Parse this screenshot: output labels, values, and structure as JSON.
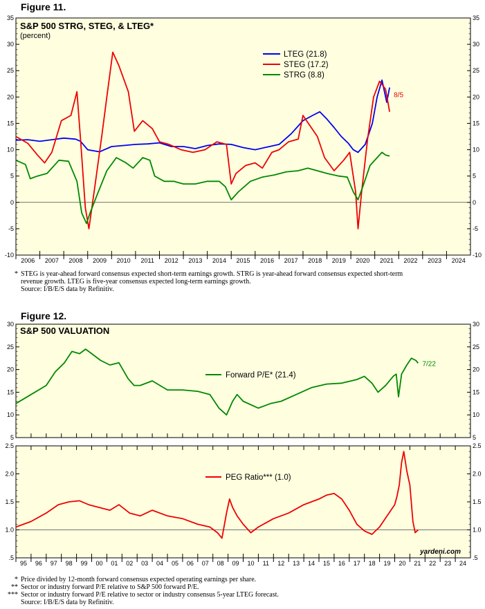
{
  "figure11": {
    "label": "Figure 11.",
    "footnote_mark": "*",
    "footnote_lines": [
      "STEG is year-ahead forward consensus expected short-term earnings growth. STRG is year-ahead forward consensus expected short-term",
      "revenue growth. LTEG is five-year consensus expected long-term earnings growth.",
      "Source: I/B/E/S data by Refinitiv."
    ]
  },
  "figure12": {
    "label": "Figure 12.",
    "footnotes": [
      {
        "mark": "*",
        "text": "Price divided by 12-month forward consensus expected operating earnings per share."
      },
      {
        "mark": "**",
        "text": "Sector or industry forward P/E relative to S&P 500 forward P/E."
      },
      {
        "mark": "***",
        "text": "Sector or industry forward P/E relative to sector or industry consensus 5-year LTEG forecast."
      },
      {
        "mark": "",
        "text": "Source: I/B/E/S data by Refinitiv."
      }
    ],
    "watermark": "yardeni.com"
  },
  "colors": {
    "background": "#ffffe0",
    "blue": "#0000ee",
    "red": "#ee0000",
    "green": "#008800"
  },
  "chart_data": [
    {
      "type": "line",
      "title": "S&P 500 STRG, STEG, & LTEG*",
      "subtitle": "(percent)",
      "ylim": [
        -10,
        35
      ],
      "yticks": [
        -10,
        -5,
        0,
        5,
        10,
        15,
        20,
        25,
        30,
        35
      ],
      "xlim": [
        2006.0,
        2025.0
      ],
      "xtick_labels": [
        "2006",
        "2007",
        "2008",
        "2009",
        "2010",
        "2011",
        "2012",
        "2013",
        "2014",
        "2015",
        "2016",
        "2017",
        "2018",
        "2019",
        "2020",
        "2021",
        "2022",
        "2023",
        "2024"
      ],
      "reference_line": 0,
      "latest_label": "8/5",
      "legend_position": "top-center",
      "series": [
        {
          "name": "LTEG (21.8)",
          "color": "#0000ee",
          "x": [
            2006.0,
            2006.5,
            2007.0,
            2007.5,
            2008.0,
            2008.5,
            2008.7,
            2009.0,
            2009.5,
            2010.0,
            2010.5,
            2011.0,
            2011.5,
            2012.0,
            2012.5,
            2013.0,
            2013.5,
            2014.0,
            2014.5,
            2015.0,
            2015.5,
            2016.0,
            2016.5,
            2017.0,
            2017.5,
            2018.0,
            2018.4,
            2018.7,
            2019.0,
            2019.3,
            2019.6,
            2019.9,
            2020.1,
            2020.3,
            2020.6,
            2020.9,
            2021.1,
            2021.3,
            2021.5,
            2021.62
          ],
          "y": [
            11.8,
            11.9,
            11.6,
            11.9,
            12.2,
            12.0,
            11.6,
            10.0,
            9.6,
            10.6,
            10.8,
            11.0,
            11.1,
            11.3,
            10.6,
            10.6,
            10.2,
            10.8,
            11.1,
            11.0,
            10.4,
            10.0,
            10.5,
            11.0,
            13.0,
            15.5,
            16.5,
            17.2,
            15.8,
            14.2,
            12.5,
            11.2,
            10.0,
            9.5,
            11.0,
            15.0,
            20.0,
            23.2,
            19.0,
            21.8
          ]
        },
        {
          "name": "STEG (17.2)",
          "color": "#ee0000",
          "x": [
            2006.0,
            2006.5,
            2006.9,
            2007.2,
            2007.5,
            2007.9,
            2008.3,
            2008.55,
            2008.7,
            2008.9,
            2009.05,
            2009.3,
            2009.6,
            2009.8,
            2010.05,
            2010.3,
            2010.7,
            2010.95,
            2011.3,
            2011.7,
            2012.0,
            2012.4,
            2012.9,
            2013.4,
            2013.9,
            2014.4,
            2014.8,
            2015.0,
            2015.2,
            2015.6,
            2016.0,
            2016.3,
            2016.7,
            2017.0,
            2017.4,
            2017.8,
            2018.0,
            2018.3,
            2018.6,
            2018.9,
            2019.3,
            2019.7,
            2019.95,
            2020.2,
            2020.3,
            2020.45,
            2020.7,
            2020.95,
            2021.2,
            2021.45,
            2021.55,
            2021.62
          ],
          "y": [
            12.5,
            11.2,
            9.0,
            7.5,
            9.5,
            15.5,
            16.5,
            21.0,
            12.0,
            -1.0,
            -5.0,
            3.0,
            13.0,
            20.0,
            28.5,
            26.0,
            21.0,
            13.5,
            15.5,
            14.0,
            11.5,
            11.0,
            10.0,
            9.5,
            10.0,
            11.5,
            11.0,
            3.5,
            5.5,
            7.0,
            7.5,
            6.5,
            9.5,
            10.0,
            11.5,
            12.0,
            16.5,
            14.5,
            12.5,
            8.5,
            6.0,
            8.0,
            9.5,
            2.0,
            -5.0,
            2.0,
            12.0,
            20.0,
            23.0,
            21.5,
            19.0,
            17.2
          ]
        },
        {
          "name": "STRG (8.8)",
          "color": "#008800",
          "x": [
            2006.0,
            2006.4,
            2006.6,
            2006.9,
            2007.3,
            2007.8,
            2008.2,
            2008.55,
            2008.75,
            2008.95,
            2009.1,
            2009.4,
            2009.8,
            2010.2,
            2010.6,
            2010.9,
            2011.3,
            2011.6,
            2011.8,
            2012.2,
            2012.6,
            2013.0,
            2013.5,
            2014.0,
            2014.5,
            2014.75,
            2015.0,
            2015.3,
            2015.8,
            2016.3,
            2016.8,
            2017.3,
            2017.8,
            2018.2,
            2018.6,
            2019.0,
            2019.5,
            2019.85,
            2020.1,
            2020.3,
            2020.5,
            2020.8,
            2021.1,
            2021.3,
            2021.45,
            2021.62
          ],
          "y": [
            8.0,
            7.2,
            4.5,
            5.0,
            5.5,
            8.0,
            7.8,
            4.0,
            -2.0,
            -4.0,
            -2.0,
            1.5,
            6.0,
            8.5,
            7.5,
            6.5,
            8.5,
            8.0,
            5.0,
            4.0,
            4.0,
            3.5,
            3.5,
            4.0,
            4.0,
            3.0,
            0.5,
            2.0,
            4.0,
            4.8,
            5.2,
            5.8,
            6.0,
            6.5,
            6.0,
            5.5,
            5.0,
            4.8,
            2.0,
            0.5,
            3.0,
            7.0,
            8.5,
            9.5,
            9.0,
            8.8
          ]
        }
      ]
    },
    {
      "type": "line",
      "title": "S&P 500  VALUATION",
      "ylim": [
        5,
        30
      ],
      "yticks": [
        5,
        10,
        15,
        20,
        25,
        30
      ],
      "xlim": [
        1995.0,
        2025.0
      ],
      "latest_label": "7/22",
      "legend_position": "center",
      "series": [
        {
          "name": "Forward P/E* (21.4)",
          "color": "#008800",
          "x": [
            1995.0,
            1996.0,
            1997.0,
            1997.6,
            1998.2,
            1998.7,
            1999.2,
            1999.6,
            2000.0,
            2000.6,
            2001.2,
            2001.8,
            2002.4,
            2002.8,
            2003.2,
            2004.0,
            2005.0,
            2006.0,
            2007.0,
            2007.8,
            2008.4,
            2008.9,
            2009.3,
            2009.6,
            2010.0,
            2011.0,
            2011.8,
            2012.5,
            2013.5,
            2014.5,
            2015.5,
            2016.5,
            2017.5,
            2018.0,
            2018.5,
            2018.9,
            2019.4,
            2019.9,
            2020.1,
            2020.25,
            2020.45,
            2020.8,
            2021.1,
            2021.4,
            2021.55
          ],
          "y": [
            12.5,
            14.5,
            16.5,
            19.5,
            21.5,
            24.0,
            23.5,
            24.5,
            23.5,
            22.0,
            21.0,
            21.5,
            18.0,
            16.5,
            16.5,
            17.5,
            15.5,
            15.5,
            15.2,
            14.5,
            11.5,
            10.0,
            13.0,
            14.5,
            13.0,
            11.5,
            12.5,
            13.0,
            14.5,
            16.0,
            16.8,
            17.0,
            17.8,
            18.5,
            17.0,
            15.0,
            16.5,
            18.5,
            19.0,
            14.0,
            19.0,
            21.0,
            22.5,
            22.0,
            21.4
          ]
        },
        {
          "name": "PEG Ratio*** (1.0)",
          "color": "#ee0000",
          "x": [
            1995.0,
            1996.0,
            1997.0,
            1997.8,
            1998.5,
            1999.2,
            1999.8,
            2000.5,
            2001.2,
            2001.8,
            2002.5,
            2003.2,
            2004.0,
            2005.0,
            2006.0,
            2007.0,
            2007.8,
            2008.3,
            2008.6,
            2008.9,
            2009.1,
            2009.3,
            2009.6,
            2010.0,
            2010.5,
            2011.0,
            2012.0,
            2013.0,
            2014.0,
            2015.0,
            2015.5,
            2016.0,
            2016.5,
            2017.0,
            2017.5,
            2018.0,
            2018.5,
            2019.0,
            2019.5,
            2020.0,
            2020.15,
            2020.3,
            2020.45,
            2020.6,
            2020.8,
            2021.0,
            2021.2,
            2021.35,
            2021.55
          ],
          "y": [
            1.05,
            1.15,
            1.3,
            1.45,
            1.5,
            1.52,
            1.45,
            1.4,
            1.35,
            1.45,
            1.3,
            1.25,
            1.35,
            1.25,
            1.2,
            1.1,
            1.05,
            0.95,
            0.85,
            1.3,
            1.55,
            1.4,
            1.25,
            1.1,
            0.95,
            1.05,
            1.2,
            1.3,
            1.45,
            1.55,
            1.62,
            1.65,
            1.55,
            1.35,
            1.1,
            0.98,
            0.92,
            1.05,
            1.25,
            1.45,
            1.6,
            1.8,
            2.2,
            2.4,
            2.05,
            1.8,
            1.15,
            0.95,
            1.0
          ]
        }
      ],
      "series_axes": {
        "Forward P/E* (21.4)": "top",
        "PEG Ratio*** (1.0)": "bottom"
      },
      "bottom_panel": {
        "ylim": [
          0.5,
          2.5
        ],
        "yticks": [
          ".5",
          "1.0",
          "1.5",
          "2.0",
          "2.5"
        ],
        "reference_line": 1.0,
        "latest_label": ""
      },
      "xtick_labels": [
        "95",
        "96",
        "97",
        "98",
        "99",
        "00",
        "01",
        "02",
        "03",
        "04",
        "05",
        "06",
        "07",
        "08",
        "09",
        "10",
        "11",
        "12",
        "13",
        "14",
        "15",
        "16",
        "17",
        "18",
        "19",
        "20",
        "21",
        "22",
        "23",
        "24"
      ]
    }
  ]
}
